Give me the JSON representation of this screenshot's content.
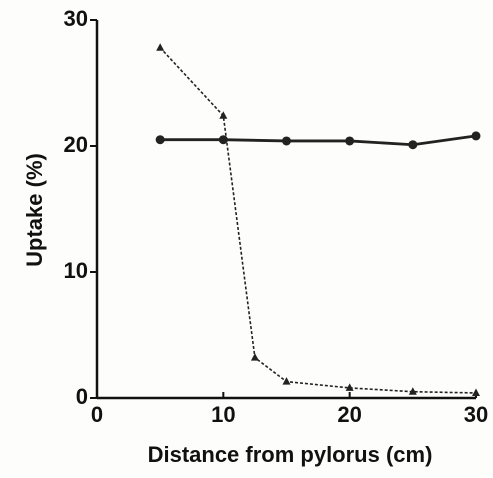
{
  "chart_data": {
    "type": "line",
    "xlabel": "Distance from pylorus (cm)",
    "ylabel": "Uptake (%)",
    "series": [
      {
        "color": "#222222",
        "marker": "circle",
        "linestyle": "solid",
        "x": [
          5,
          10,
          15,
          20,
          25,
          30
        ],
        "values": [
          20.5,
          20.5,
          20.4,
          20.4,
          20.1,
          20.8
        ]
      },
      {
        "color": "#222222",
        "marker": "triangle",
        "linestyle": "dashed",
        "x": [
          5,
          10,
          12.5,
          15,
          20,
          25,
          30
        ],
        "values": [
          27.8,
          22.4,
          3.2,
          1.3,
          0.8,
          0.5,
          0.4
        ]
      }
    ],
    "xlim": [
      0,
      30
    ],
    "xticks": [
      0,
      10,
      20,
      30
    ],
    "ylim": [
      0,
      30
    ],
    "yticks": [
      0,
      10,
      20,
      30
    ],
    "grid": false
  }
}
